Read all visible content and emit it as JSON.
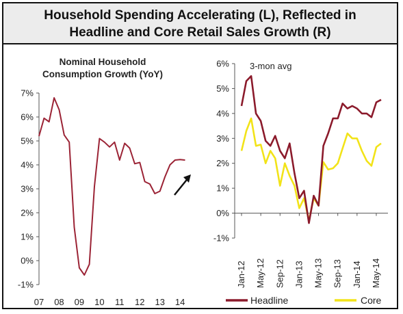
{
  "title": {
    "line1": "Household Spending Accelerating (L), Reflected in",
    "line2": "Headline and Core Retail Sales Growth (R)"
  },
  "colors": {
    "headline": "#8b1a2b",
    "core": "#f2e318",
    "left_line": "#9b2335",
    "arrow": "#111111"
  },
  "chart_data": [
    {
      "type": "line",
      "title": "Nominal Household Consumption Growth (YoY)",
      "title_lines": [
        "Nominal Household",
        "Consumption Growth (YoY)"
      ],
      "xlabel": "",
      "ylabel": "",
      "ylim": [
        -1,
        7
      ],
      "yticks": [
        -1,
        0,
        1,
        2,
        3,
        4,
        5,
        6,
        7
      ],
      "ytick_labels": [
        "-1%",
        "0%",
        "1%",
        "2%",
        "3%",
        "4%",
        "5%",
        "6%",
        "7%"
      ],
      "xlim": [
        2007,
        2014.3
      ],
      "xticks": [
        2007,
        2008,
        2009,
        2010,
        2011,
        2012,
        2013,
        2014
      ],
      "xtick_labels": [
        "07",
        "08",
        "09",
        "10",
        "11",
        "12",
        "13",
        "14"
      ],
      "grid": false,
      "annotation": "upward arrow near end of series",
      "series": [
        {
          "x": [
            2007.0,
            2007.25,
            2007.5,
            2007.75,
            2008.0,
            2008.25,
            2008.5,
            2008.75,
            2009.0,
            2009.25,
            2009.5,
            2009.75,
            2010.0,
            2010.25,
            2010.5,
            2010.75,
            2011.0,
            2011.25,
            2011.5,
            2011.75,
            2012.0,
            2012.25,
            2012.5,
            2012.75,
            2013.0,
            2013.25,
            2013.5,
            2013.75,
            2014.0,
            2014.25
          ],
          "values": [
            5.2,
            5.95,
            5.8,
            6.8,
            6.3,
            5.25,
            4.95,
            1.4,
            -0.3,
            -0.6,
            -0.15,
            3.1,
            5.1,
            4.95,
            4.75,
            4.95,
            4.2,
            4.9,
            4.7,
            4.05,
            4.1,
            3.3,
            3.2,
            2.8,
            2.9,
            3.5,
            4.0,
            4.2,
            4.22,
            4.2
          ]
        }
      ]
    },
    {
      "type": "line",
      "title": "",
      "annotation": "3-mon avg",
      "xlabel": "",
      "ylabel": "",
      "ylim": [
        -1,
        6
      ],
      "yticks": [
        -1,
        0,
        1,
        2,
        3,
        4,
        5,
        6
      ],
      "ytick_labels": [
        "-1%",
        "0%",
        "1%",
        "2%",
        "3%",
        "4%",
        "5%",
        "6%"
      ],
      "xtick_labels": [
        "Jan-12",
        "May-12",
        "Sep-12",
        "Jan-13",
        "May-13",
        "Sep-13",
        "Jan-14",
        "May-14"
      ],
      "xtick_index": [
        0,
        4,
        8,
        12,
        16,
        20,
        24,
        28
      ],
      "grid": false,
      "legend": "bottom",
      "series": [
        {
          "name": "Headline",
          "values": [
            4.3,
            5.3,
            5.5,
            4.0,
            3.7,
            2.9,
            2.7,
            3.1,
            2.5,
            2.2,
            2.8,
            1.6,
            0.6,
            0.9,
            -0.4,
            0.7,
            0.3,
            2.7,
            3.2,
            3.8,
            3.8,
            4.4,
            4.2,
            4.3,
            4.2,
            4.0,
            4.0,
            3.85,
            4.45,
            4.55
          ]
        },
        {
          "name": "Core",
          "values": [
            2.5,
            3.3,
            3.8,
            2.7,
            2.75,
            2.0,
            2.5,
            2.2,
            1.1,
            2.0,
            1.5,
            1.1,
            0.2,
            0.6,
            -0.3,
            0.6,
            0.3,
            2.05,
            1.75,
            1.8,
            2.0,
            2.6,
            3.2,
            3.0,
            3.0,
            2.5,
            2.1,
            1.9,
            2.65,
            2.8
          ]
        }
      ]
    }
  ]
}
